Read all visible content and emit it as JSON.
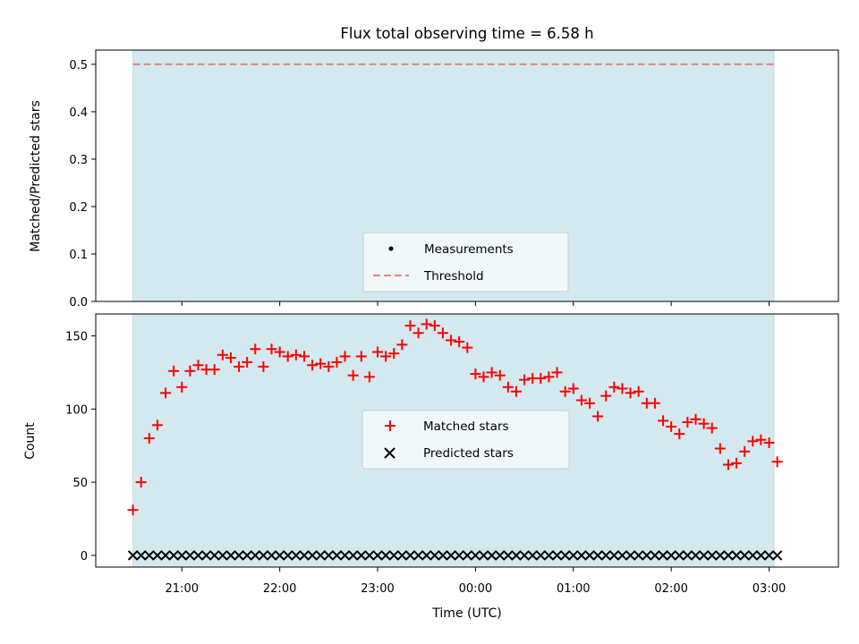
{
  "chart_data": [
    {
      "type": "line",
      "title": "Flux total observing time = 6.58 h",
      "xlabel": "",
      "ylabel": "Matched/Predicted stars",
      "ylim": [
        0,
        0.53
      ],
      "yticks": [
        "0.0",
        "0.1",
        "0.2",
        "0.3",
        "0.4",
        "0.5"
      ],
      "ytick_values": [
        0,
        0.1,
        0.2,
        0.3,
        0.4,
        0.5
      ],
      "threshold": 0.5,
      "observing_window": [
        "20:30",
        "03:03"
      ],
      "legend_position": "lower center",
      "legend": [
        "Measurements",
        "Threshold"
      ],
      "colors": {
        "shade": "#d3e9ef",
        "threshold": "#f08080"
      }
    },
    {
      "type": "scatter",
      "xlabel": "Time (UTC)",
      "ylabel": "Count",
      "ylim": [
        -8,
        165
      ],
      "yticks": [
        "0",
        "50",
        "100",
        "150"
      ],
      "ytick_values": [
        0,
        50,
        100,
        150
      ],
      "xticks": [
        "21:00",
        "22:00",
        "23:00",
        "00:00",
        "01:00",
        "02:00",
        "03:00"
      ],
      "legend_position": "center",
      "legend": [
        "Matched stars",
        "Predicted stars"
      ],
      "colors": {
        "matched": "#ff0000",
        "predicted": "#000000",
        "shade": "#d3e9ef"
      },
      "series": [
        {
          "name": "Matched stars",
          "x": [
            "20:30",
            "20:35",
            "20:40",
            "20:45",
            "20:50",
            "20:55",
            "21:00",
            "21:05",
            "21:10",
            "21:15",
            "21:20",
            "21:25",
            "21:30",
            "21:35",
            "21:40",
            "21:45",
            "21:50",
            "21:55",
            "22:00",
            "22:05",
            "22:10",
            "22:15",
            "22:20",
            "22:25",
            "22:30",
            "22:35",
            "22:40",
            "22:45",
            "22:50",
            "22:55",
            "23:00",
            "23:05",
            "23:10",
            "23:15",
            "23:20",
            "23:25",
            "23:30",
            "23:35",
            "23:40",
            "23:45",
            "23:50",
            "23:55",
            "00:00",
            "00:05",
            "00:10",
            "00:15",
            "00:20",
            "00:25",
            "00:30",
            "00:35",
            "00:40",
            "00:45",
            "00:50",
            "00:55",
            "01:00",
            "01:05",
            "01:10",
            "01:15",
            "01:20",
            "01:25",
            "01:30",
            "01:35",
            "01:40",
            "01:45",
            "01:50",
            "01:55",
            "02:00",
            "02:05",
            "02:10",
            "02:15",
            "02:20",
            "02:25",
            "02:30",
            "02:35",
            "02:40",
            "02:45",
            "02:50",
            "02:55",
            "03:00",
            "03:05"
          ],
          "values": [
            31,
            50,
            80,
            89,
            111,
            126,
            115,
            126,
            130,
            127,
            127,
            137,
            135,
            129,
            132,
            141,
            129,
            141,
            139,
            136,
            137,
            136,
            130,
            131,
            129,
            132,
            136,
            123,
            136,
            122,
            139,
            136,
            138,
            144,
            157,
            152,
            158,
            157,
            152,
            147,
            146,
            142,
            124,
            122,
            125,
            123,
            115,
            112,
            120,
            121,
            121,
            122,
            125,
            112,
            114,
            106,
            104,
            95,
            109,
            115,
            114,
            111,
            112,
            104,
            104,
            92,
            88,
            83,
            91,
            93,
            90,
            87,
            73,
            62,
            63,
            71,
            78,
            79,
            77,
            64
          ]
        },
        {
          "name": "Predicted stars",
          "x_range": [
            "20:30",
            "03:05"
          ],
          "count": 80,
          "value": 0
        }
      ]
    }
  ]
}
